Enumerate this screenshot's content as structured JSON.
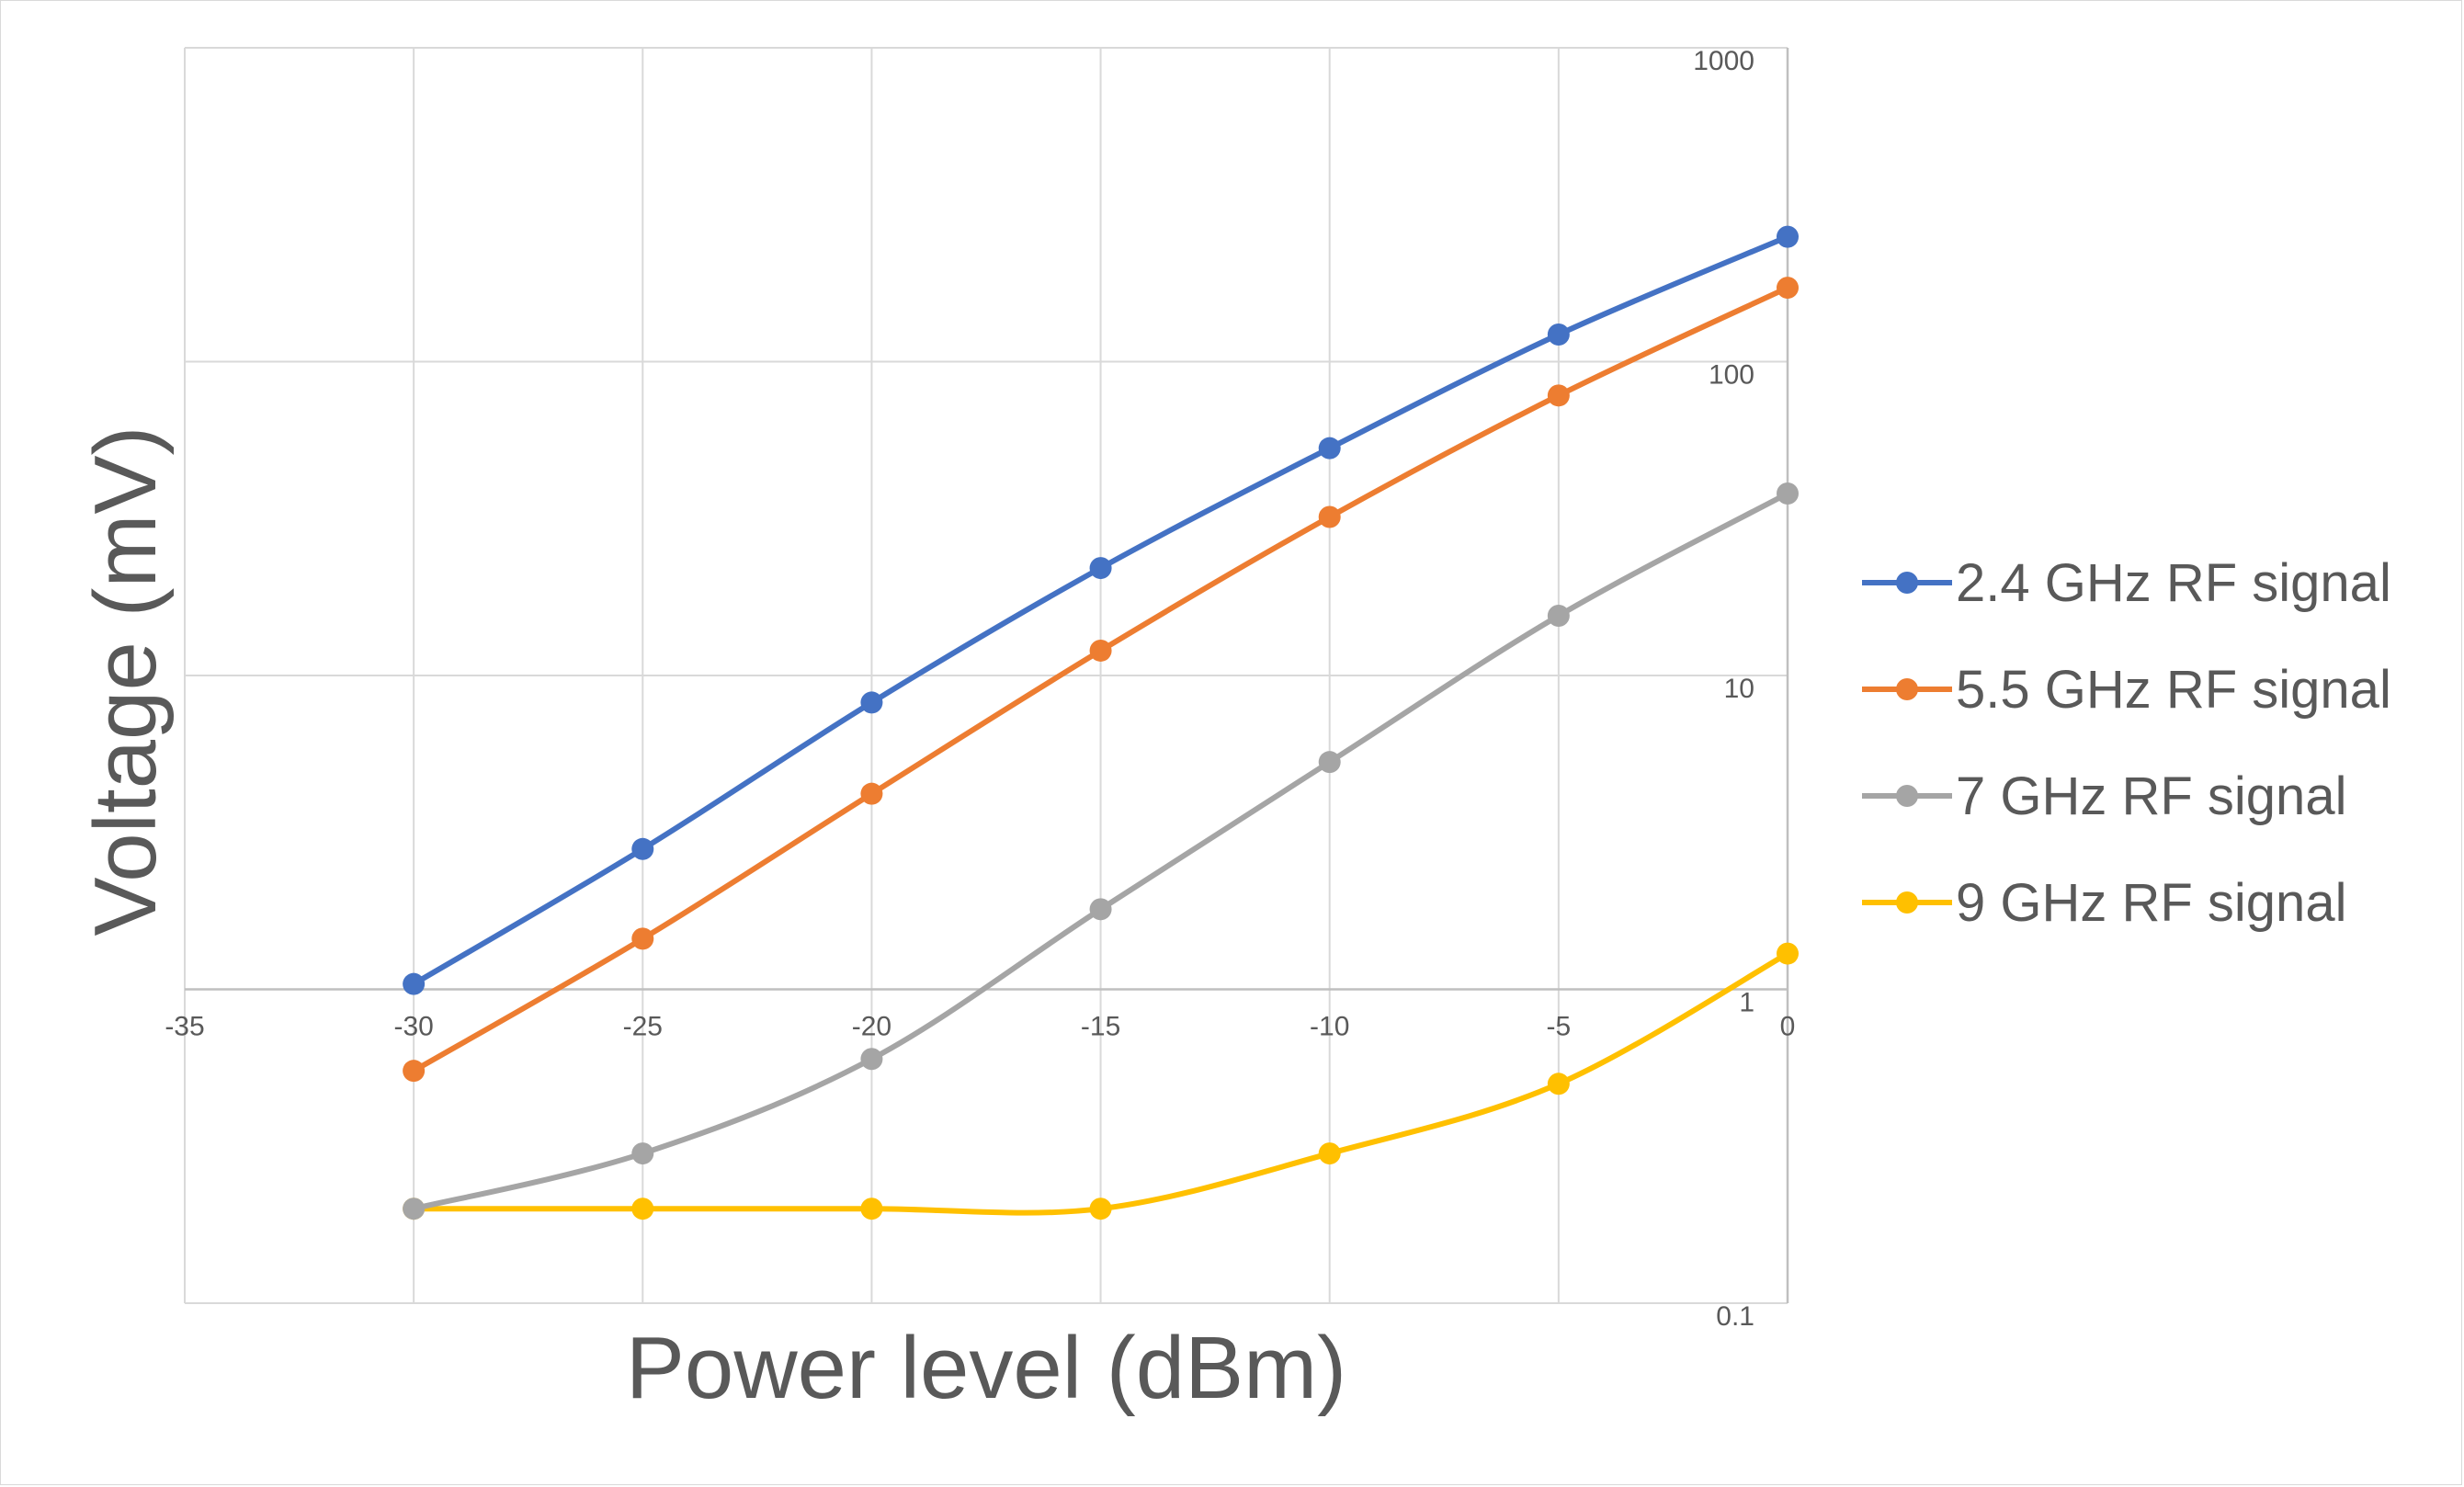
{
  "chart_data": {
    "type": "line",
    "title": "",
    "xlabel": "Power level (dBm)",
    "ylabel": "Voltage (mV)",
    "x": [
      -30,
      -25,
      -20,
      -15,
      -10,
      -5,
      0
    ],
    "xlim": [
      -35,
      0
    ],
    "xticks": [
      "-35",
      "-30",
      "-25",
      "-20",
      "-15",
      "-10",
      "-5",
      "0"
    ],
    "yscale": "log",
    "ylim": [
      0.1,
      1000
    ],
    "yticks": [
      "0.1",
      "1",
      "10",
      "100",
      "1000"
    ],
    "grid": true,
    "legend_position": "right",
    "series": [
      {
        "name": "2.4 GHz RF signal",
        "color": "#4472C4",
        "values": [
          1.04,
          2.8,
          8.2,
          22,
          53,
          122,
          250
        ]
      },
      {
        "name": "5.5 GHz RF signal",
        "color": "#ED7D31",
        "values": [
          0.55,
          1.45,
          4.2,
          12,
          32,
          78,
          172
        ]
      },
      {
        "name": "7 GHz RF signal",
        "color": "#A5A5A5",
        "values": [
          0.2,
          0.3,
          0.6,
          1.8,
          5.3,
          15.5,
          38
        ]
      },
      {
        "name": "9 GHz RF signal",
        "color": "#FFC000",
        "values": [
          0.2,
          0.2,
          0.2,
          0.2,
          0.3,
          0.5,
          1.3
        ]
      }
    ]
  }
}
